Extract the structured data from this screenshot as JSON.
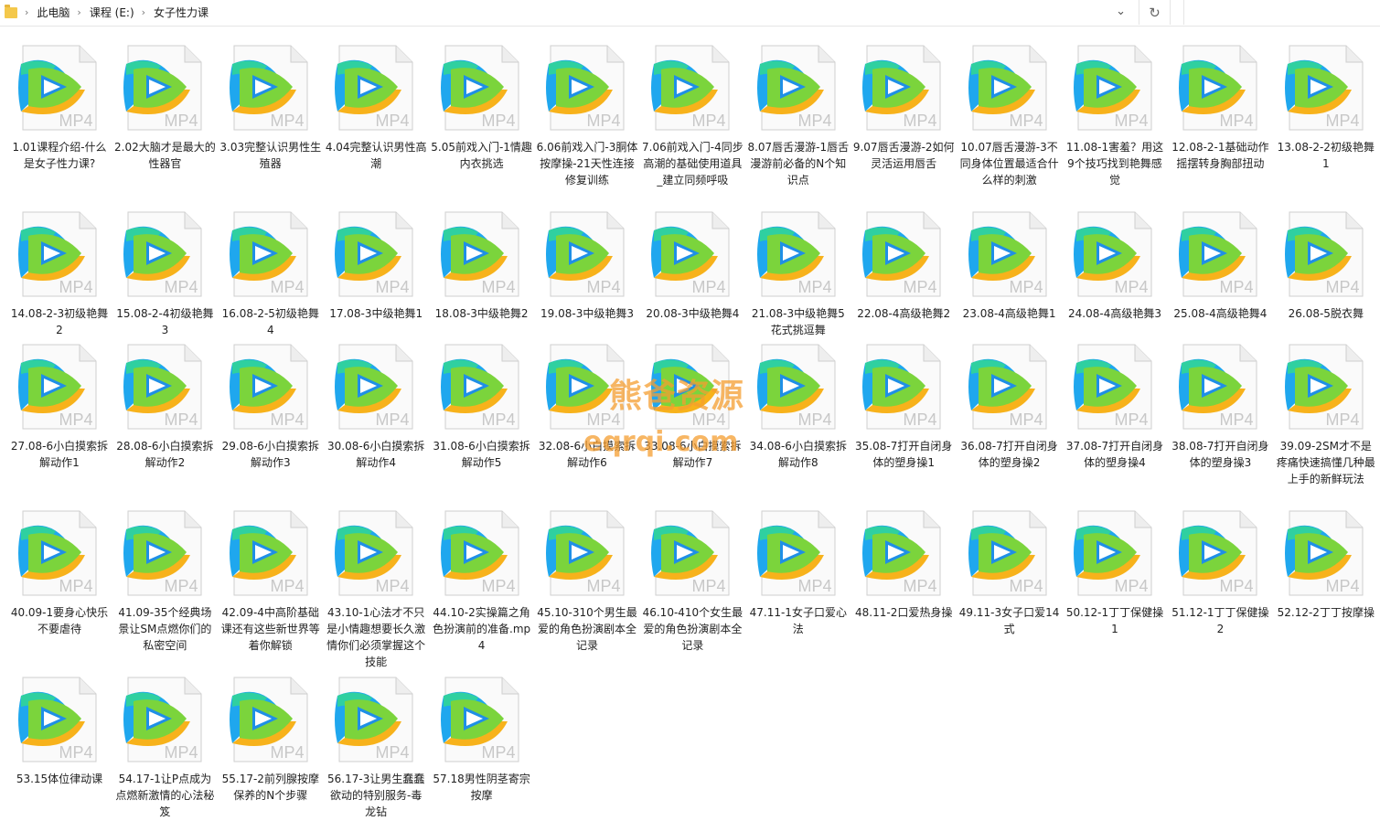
{
  "address_bar": {
    "crumbs": [
      "此电脑",
      "课程 (E:)",
      "女子性力课"
    ],
    "dropdown_icon": "chevron-down-icon",
    "refresh_icon": "refresh-icon"
  },
  "file_type_badge": "MP4",
  "colors": {
    "accent_orange": "#f59e31",
    "folder": "#f4c84b"
  },
  "watermark": {
    "line1": "熊爸资源",
    "line2": "eqrqi.com"
  },
  "files": [
    "1.01课程介绍-什么是女子性力课?",
    "2.02大脑才是最大的性器官",
    "3.03完整认识男性生殖器",
    "4.04完整认识男性高潮",
    "5.05前戏入门-1情趣内衣挑选",
    "6.06前戏入门-3胴体按摩操-21天性连接修复训练",
    "7.06前戏入门-4同步高潮的基础使用道具_建立同频呼吸",
    "8.07唇舌漫游-1唇舌漫游前必备的N个知识点",
    "9.07唇舌漫游-2如何灵活运用唇舌",
    "10.07唇舌漫游-3不同身体位置最适合什么样的刺激",
    "11.08-1害羞？用这9个技巧找到艳舞感觉",
    "12.08-2-1基础动作摇摆转身胸部扭动",
    "13.08-2-2初级艳舞1",
    "14.08-2-3初级艳舞2",
    "15.08-2-4初级艳舞3",
    "16.08-2-5初级艳舞4",
    "17.08-3中级艳舞1",
    "18.08-3中级艳舞2",
    "19.08-3中级艳舞3",
    "20.08-3中级艳舞4",
    "21.08-3中级艳舞5花式挑逗舞",
    "22.08-4高级艳舞2",
    "23.08-4高级艳舞1",
    "24.08-4高级艳舞3",
    "25.08-4高级艳舞4",
    "26.08-5脱衣舞",
    "27.08-6小白摸索拆解动作1",
    "28.08-6小白摸索拆解动作2",
    "29.08-6小白摸索拆解动作3",
    "30.08-6小白摸索拆解动作4",
    "31.08-6小白摸索拆解动作5",
    "32.08-6小白摸索拆解动作6",
    "33.08-6小白摸索拆解动作7",
    "34.08-6小白摸索拆解动作8",
    "35.08-7打开自闭身体的塑身操1",
    "36.08-7打开自闭身体的塑身操2",
    "37.08-7打开自闭身体的塑身操4",
    "38.08-7打开自闭身体的塑身操3",
    "39.09-2SM才不是疼痛快速搞懂几种最上手的新鲜玩法",
    "40.09-1要身心快乐不要虐待",
    "41.09-35个经典场景让SM点燃你们的私密空间",
    "42.09-4中高阶基础课还有这些新世界等着你解锁",
    "43.10-1心法才不只是小情趣想要长久激情你们必须掌握这个技能",
    "44.10-2实操篇之角色扮演前的准备.mp4",
    "45.10-310个男生最爱的角色扮演剧本全记录",
    "46.10-410个女生最爱的角色扮演剧本全记录",
    "47.11-1女子口爱心法",
    "48.11-2口爱热身操",
    "49.11-3女子口爱14式",
    "50.12-1丁丁保健操1",
    "51.12-1丁丁保健操2",
    "52.12-2丁丁按摩操",
    "53.15体位律动课",
    "54.17-1让P点成为点燃新激情的心法秘笈",
    "55.17-2前列腺按摩保养的N个步骤",
    "56.17-3让男生蠢蠢欲动的特别服务-毒龙钻",
    "57.18男性阴茎寄宗按摩"
  ]
}
